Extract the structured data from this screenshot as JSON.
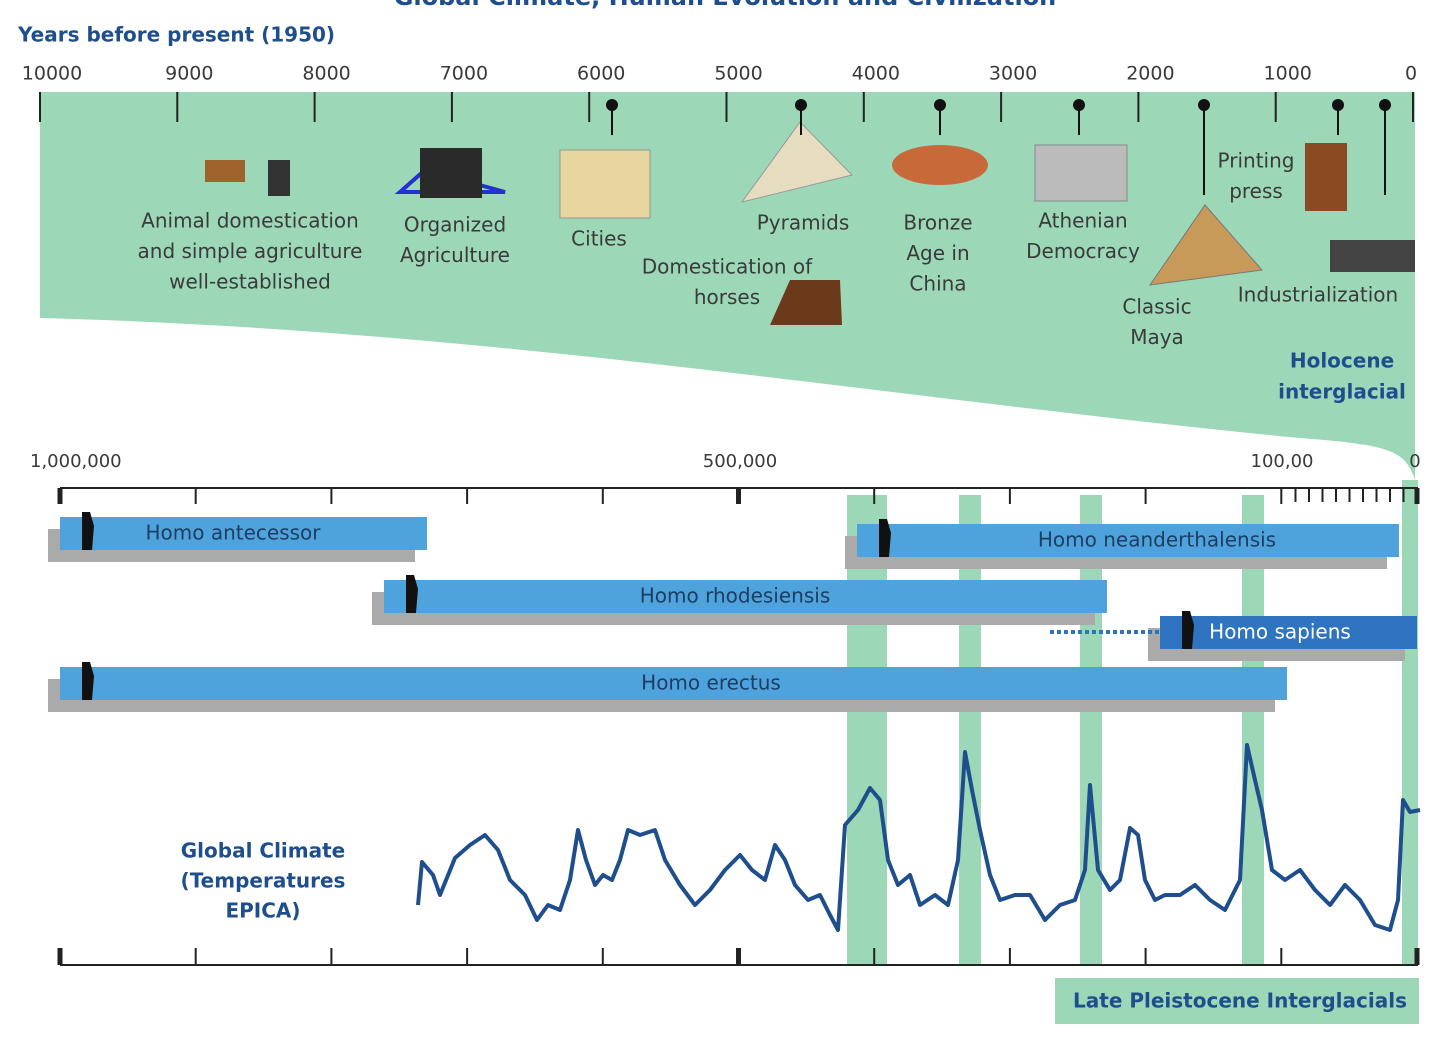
{
  "title": "Global Climate, Human Evolution and Civilization",
  "top_axis": {
    "label": "Years before present (1950)",
    "ticks": [
      "10000",
      "9000",
      "8000",
      "7000",
      "6000",
      "5000",
      "4000",
      "3000",
      "2000",
      "1000",
      "0"
    ]
  },
  "events": [
    {
      "label": [
        "Animal domestication",
        "and simple agriculture",
        "well-established"
      ]
    },
    {
      "label": [
        "Organized",
        "Agriculture"
      ]
    },
    {
      "label": [
        "Cities"
      ]
    },
    {
      "label": [
        "Pyramids"
      ]
    },
    {
      "label": [
        "Domestication of",
        "horses"
      ]
    },
    {
      "label": [
        "Bronze",
        "Age in",
        "China"
      ]
    },
    {
      "label": [
        "Athenian",
        "Democracy"
      ]
    },
    {
      "label": [
        "Printing",
        "press"
      ]
    },
    {
      "label": [
        "Classic",
        "Maya"
      ]
    },
    {
      "label": [
        "Industrialization"
      ]
    }
  ],
  "holocene": [
    "Holocene",
    "interglacial"
  ],
  "bottom_axis": {
    "ticks": [
      "1,000,000",
      "500,000",
      "100,00",
      "0"
    ]
  },
  "species": [
    "Homo antecessor",
    "Homo rhodesiensis",
    "Homo neanderthalensis",
    "Homo sapiens",
    "Homo erectus"
  ],
  "climate_label": [
    "Global Climate",
    "(Temperatures",
    "EPICA)"
  ],
  "interglacials": "Late Pleistocene Interglacials"
}
